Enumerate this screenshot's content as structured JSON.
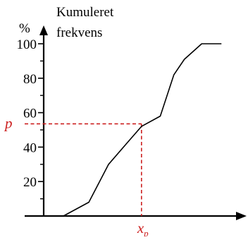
{
  "colors": {
    "axis": "#000000",
    "series": "#000000",
    "marker": "#cc1f1f"
  },
  "chart_data": {
    "type": "line",
    "y_unit": "%",
    "y_title_lines": [
      "Kumuleret",
      "frekvens"
    ],
    "y_ticks": [
      20,
      40,
      60,
      80,
      100
    ],
    "y_tick_labels": [
      "20",
      "40",
      "60",
      "80",
      "100"
    ],
    "ylim": [
      0,
      100
    ],
    "x_tick_labels": [],
    "grid": false,
    "legend": "none",
    "series": [
      {
        "x": [
          0,
          1.05,
          2.4,
          3.45,
          4.4,
          5.2,
          6.2,
          6.92,
          7.48,
          8.4,
          9.45
        ],
        "y": [
          0,
          0,
          8,
          30,
          42,
          52,
          58,
          82,
          91,
          100,
          100
        ]
      }
    ],
    "xlim": [
      0,
      10.5
    ],
    "marker": {
      "y_label": "p",
      "x_label": "x",
      "x_subscript": "p",
      "y": 53.5,
      "x": 5.2
    }
  }
}
